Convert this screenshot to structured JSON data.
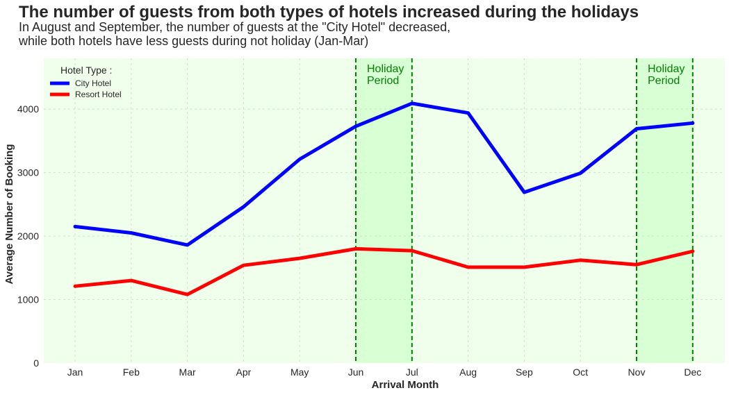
{
  "chart_data": {
    "type": "line",
    "title": "The number of guests from both types of hotels increased during the holidays",
    "subtitle_lines": [
      "In August and September, the number of guests at the \"City Hotel\" decreased,",
      "while both hotels have less guests during not holiday (Jan-Mar)"
    ],
    "xlabel": "Arrival Month",
    "ylabel": "Average Number of Booking",
    "categories": [
      "Jan",
      "Feb",
      "Mar",
      "Apr",
      "May",
      "Jun",
      "Jul",
      "Aug",
      "Sep",
      "Oct",
      "Nov",
      "Dec"
    ],
    "ylim": [
      0,
      4800
    ],
    "yticks": [
      0,
      1000,
      2000,
      3000,
      4000
    ],
    "grid": true,
    "legend": {
      "title": "Hotel Type :",
      "placement": "top-left"
    },
    "series": [
      {
        "name": "City Hotel",
        "color": "#0000ff",
        "values": [
          2150,
          2050,
          1860,
          2460,
          3210,
          3730,
          4090,
          3940,
          2690,
          2990,
          3690,
          3780
        ]
      },
      {
        "name": "Resort Hotel",
        "color": "#ff0000",
        "values": [
          1210,
          1300,
          1080,
          1540,
          1650,
          1800,
          1770,
          1510,
          1510,
          1620,
          1550,
          1760
        ]
      }
    ],
    "holiday_periods": [
      {
        "from": "Jun",
        "to": "Jul",
        "label_lines": [
          "Holiday",
          "Period"
        ]
      },
      {
        "from": "Nov",
        "to": "Dec",
        "label_lines": [
          "Holiday",
          "Period"
        ]
      }
    ],
    "colors": {
      "plot_background": "#f0ffeb",
      "holiday_fill": "#d9ffd4",
      "holiday_line": "#008000",
      "annotation_text": "#008000",
      "grid": "#c5e8bd"
    }
  }
}
